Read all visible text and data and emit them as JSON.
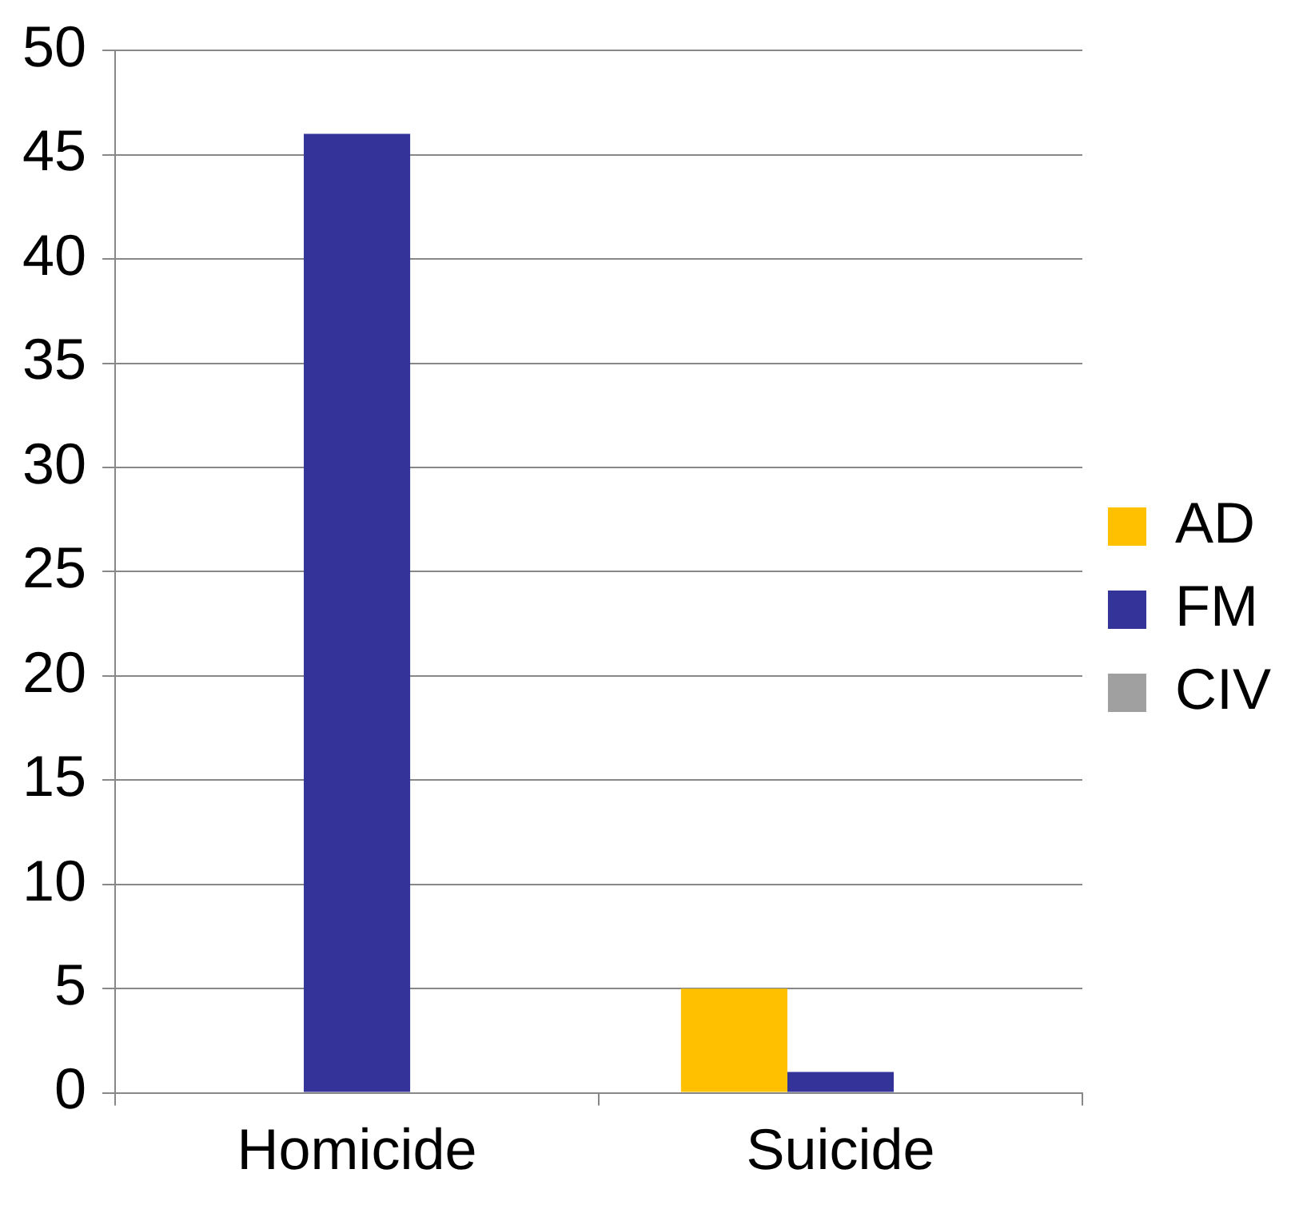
{
  "chart_data": {
    "type": "bar",
    "categories": [
      "Homicide",
      "Suicide"
    ],
    "series": [
      {
        "name": "AD",
        "color": "#ffc000",
        "values": [
          0,
          5
        ]
      },
      {
        "name": "FM",
        "color": "#333399",
        "values": [
          46,
          1
        ]
      },
      {
        "name": "CIV",
        "color": "#a0a0a0",
        "values": [
          0,
          0
        ]
      }
    ],
    "ylim": [
      0,
      50
    ],
    "yticks": [
      0,
      5,
      10,
      15,
      20,
      25,
      30,
      35,
      40,
      45,
      50
    ],
    "grid": "y",
    "legend": "right"
  }
}
